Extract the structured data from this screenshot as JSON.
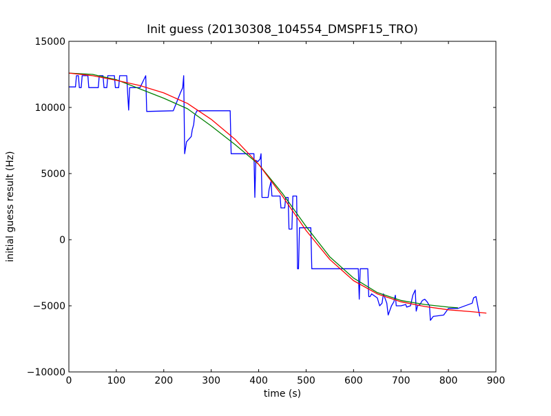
{
  "chart_data": {
    "type": "line",
    "title": "Init guess (20130308_104554_DMSPF15_TRO)",
    "xlabel": "time (s)",
    "ylabel": "initial guess result (Hz)",
    "xlim": [
      0,
      900
    ],
    "ylim": [
      -10000,
      15000
    ],
    "x_ticks": [
      0,
      100,
      200,
      300,
      400,
      500,
      600,
      700,
      800,
      900
    ],
    "y_ticks": [
      -10000,
      -5000,
      0,
      5000,
      10000,
      15000
    ],
    "x_tick_labels": [
      "0",
      "100",
      "200",
      "300",
      "400",
      "500",
      "600",
      "700",
      "800",
      "900"
    ],
    "y_tick_labels": [
      "−10000",
      "−5000",
      "0",
      "5000",
      "10000",
      "15000"
    ],
    "grid": false,
    "legend": "none",
    "series": [
      {
        "color": "#0000ff",
        "style": "raw",
        "points": [
          [
            0,
            11550
          ],
          [
            14,
            11550
          ],
          [
            16,
            12400
          ],
          [
            20,
            12400
          ],
          [
            22,
            11500
          ],
          [
            26,
            11500
          ],
          [
            28,
            12400
          ],
          [
            40,
            12400
          ],
          [
            42,
            11500
          ],
          [
            62,
            11500
          ],
          [
            64,
            12400
          ],
          [
            72,
            12400
          ],
          [
            74,
            11500
          ],
          [
            80,
            11500
          ],
          [
            82,
            12400
          ],
          [
            96,
            12400
          ],
          [
            98,
            11500
          ],
          [
            105,
            11500
          ],
          [
            107,
            12400
          ],
          [
            122,
            12400
          ],
          [
            124,
            11000
          ],
          [
            126,
            9800
          ],
          [
            128,
            11500
          ],
          [
            150,
            11500
          ],
          [
            162,
            12400
          ],
          [
            164,
            9700
          ],
          [
            220,
            9750
          ],
          [
            225,
            10200
          ],
          [
            235,
            11100
          ],
          [
            240,
            11500
          ],
          [
            242,
            12400
          ],
          [
            244,
            6500
          ],
          [
            248,
            7400
          ],
          [
            258,
            7800
          ],
          [
            260,
            8300
          ],
          [
            263,
            8700
          ],
          [
            265,
            9400
          ],
          [
            270,
            9750
          ],
          [
            340,
            9750
          ],
          [
            342,
            6500
          ],
          [
            390,
            6500
          ],
          [
            392,
            3200
          ],
          [
            394,
            6000
          ],
          [
            398,
            5900
          ],
          [
            403,
            6100
          ],
          [
            405,
            6500
          ],
          [
            407,
            3200
          ],
          [
            420,
            3200
          ],
          [
            422,
            3800
          ],
          [
            426,
            4400
          ],
          [
            428,
            3300
          ],
          [
            445,
            3300
          ],
          [
            447,
            2400
          ],
          [
            455,
            2400
          ],
          [
            457,
            3200
          ],
          [
            462,
            3200
          ],
          [
            464,
            800
          ],
          [
            470,
            800
          ],
          [
            472,
            3300
          ],
          [
            480,
            3300
          ],
          [
            482,
            -2200
          ],
          [
            484,
            -2200
          ],
          [
            486,
            900
          ],
          [
            510,
            900
          ],
          [
            512,
            -2200
          ],
          [
            610,
            -2200
          ],
          [
            612,
            -4500
          ],
          [
            614,
            -2200
          ],
          [
            630,
            -2200
          ],
          [
            632,
            -4300
          ],
          [
            635,
            -4300
          ],
          [
            638,
            -4100
          ],
          [
            650,
            -4400
          ],
          [
            655,
            -5000
          ],
          [
            660,
            -4800
          ],
          [
            663,
            -4100
          ],
          [
            670,
            -4800
          ],
          [
            673,
            -5700
          ],
          [
            680,
            -5000
          ],
          [
            685,
            -4700
          ],
          [
            688,
            -4200
          ],
          [
            690,
            -5000
          ],
          [
            700,
            -5000
          ],
          [
            710,
            -4900
          ],
          [
            712,
            -5100
          ],
          [
            720,
            -5000
          ],
          [
            725,
            -4200
          ],
          [
            730,
            -3800
          ],
          [
            732,
            -5400
          ],
          [
            735,
            -5000
          ],
          [
            740,
            -4900
          ],
          [
            745,
            -4600
          ],
          [
            750,
            -4500
          ],
          [
            755,
            -4700
          ],
          [
            760,
            -5000
          ],
          [
            762,
            -6100
          ],
          [
            768,
            -5800
          ],
          [
            790,
            -5700
          ],
          [
            800,
            -5200
          ],
          [
            820,
            -5200
          ],
          [
            850,
            -4800
          ],
          [
            853,
            -4400
          ],
          [
            858,
            -4300
          ],
          [
            866,
            -5800
          ]
        ]
      },
      {
        "color": "#008000",
        "style": "fit",
        "points": [
          [
            0,
            12600
          ],
          [
            50,
            12500
          ],
          [
            100,
            12100
          ],
          [
            150,
            11400
          ],
          [
            200,
            10700
          ],
          [
            250,
            9900
          ],
          [
            300,
            8600
          ],
          [
            350,
            7200
          ],
          [
            400,
            5700
          ],
          [
            450,
            3500
          ],
          [
            500,
            1000
          ],
          [
            550,
            -1300
          ],
          [
            600,
            -2900
          ],
          [
            650,
            -4000
          ],
          [
            700,
            -4600
          ],
          [
            750,
            -4900
          ],
          [
            800,
            -5100
          ],
          [
            820,
            -5150
          ]
        ]
      },
      {
        "color": "#ff0000",
        "style": "fit",
        "points": [
          [
            0,
            12600
          ],
          [
            50,
            12400
          ],
          [
            100,
            12050
          ],
          [
            150,
            11650
          ],
          [
            200,
            11100
          ],
          [
            250,
            10300
          ],
          [
            300,
            9100
          ],
          [
            350,
            7600
          ],
          [
            400,
            5700
          ],
          [
            450,
            3300
          ],
          [
            500,
            700
          ],
          [
            550,
            -1500
          ],
          [
            600,
            -3100
          ],
          [
            650,
            -4100
          ],
          [
            700,
            -4700
          ],
          [
            750,
            -5050
          ],
          [
            800,
            -5300
          ],
          [
            850,
            -5450
          ],
          [
            880,
            -5550
          ]
        ]
      }
    ]
  }
}
